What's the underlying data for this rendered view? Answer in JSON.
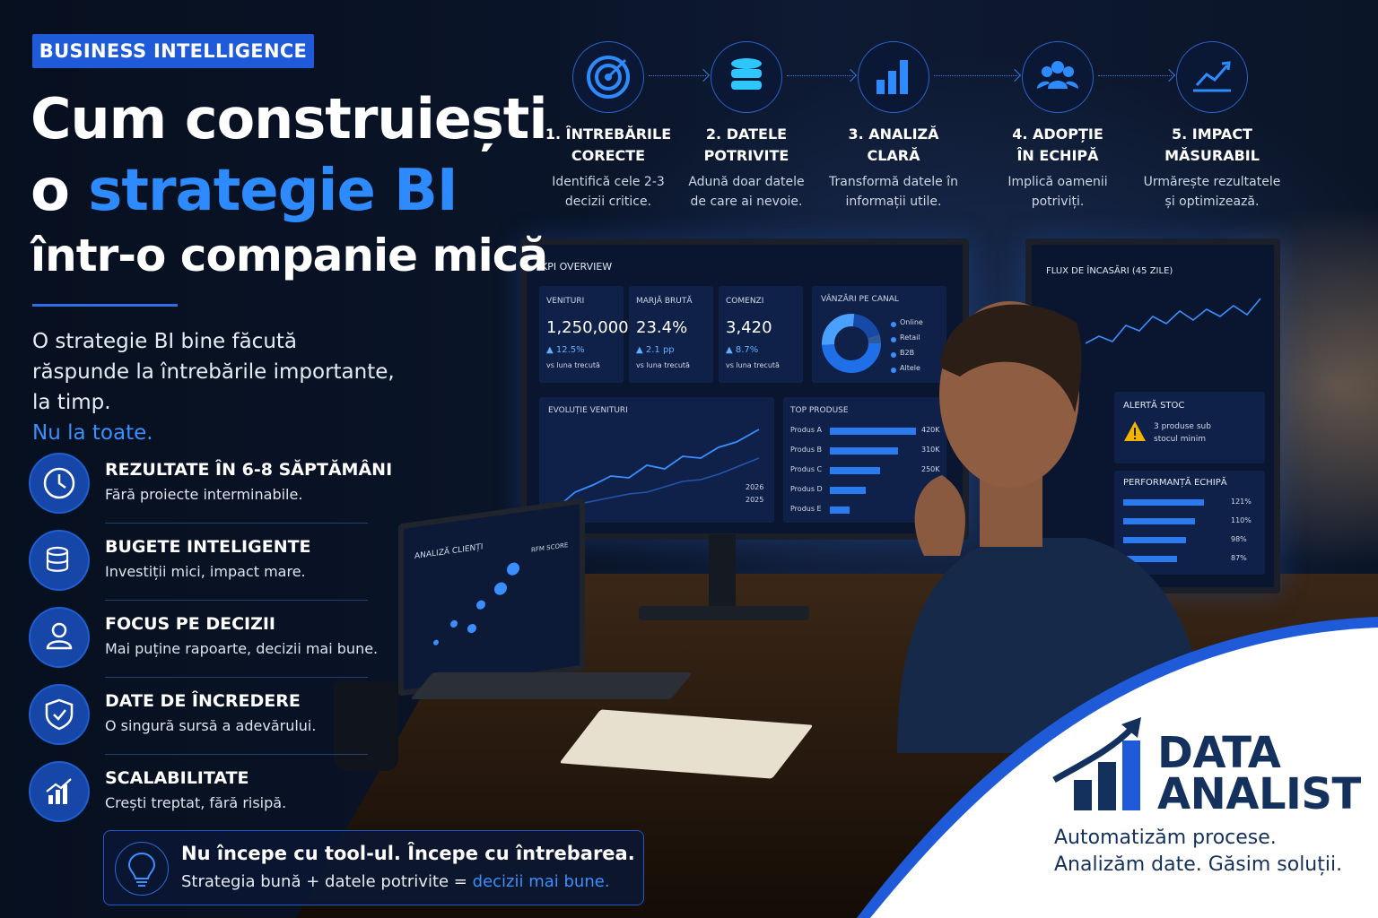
{
  "header": {
    "badge": "BUSINESS INTELLIGENCE",
    "title_line1": "Cum construiești",
    "title_line2_start": "o",
    "title_line2_highlight": "strategie BI",
    "title_line3": "într-o companie mică",
    "intro": "O strategie BI bine făcută răspunde la întrebările importante, la timp.",
    "intro_highlight": "Nu la toate."
  },
  "benefits": [
    {
      "title": "REZULTATE ÎN 6-8 SĂPTĂMÂNI",
      "text": "Fără proiecte interminabile."
    },
    {
      "title": "BUGETE INTELIGENTE",
      "text": "Investiții mici, impact mare."
    },
    {
      "title": "FOCUS PE DECIZII",
      "text": "Mai puține rapoarte, decizii mai bune."
    },
    {
      "title": "DATE DE ÎNCREDERE",
      "text": "O singură sursă a adevărului."
    },
    {
      "title": "SCALABILITATE",
      "text": "Crești treptat, fără risipă."
    }
  ],
  "callout": {
    "title": "Nu începe cu tool-ul. Începe cu întrebarea.",
    "text": "Strategia bună + datele potrivite =",
    "highlight": "decizii mai bune."
  },
  "steps": [
    {
      "title": [
        "1. ÎNTREBĂRILE",
        "CORECTE"
      ],
      "text": [
        "Identifică cele 2-3",
        "decizii critice."
      ]
    },
    {
      "title": [
        "2. DATELE",
        "POTRIVITE"
      ],
      "text": [
        "Adună doar datele",
        "de care ai nevoie."
      ]
    },
    {
      "title": [
        "3. ANALIZĂ",
        "CLARĂ"
      ],
      "text": [
        "Transformă datele în",
        "informații utile."
      ]
    },
    {
      "title": [
        "4. ADOPȚIE",
        "ÎN ECHIPĂ"
      ],
      "text": [
        "Implică oamenii",
        "potriviți."
      ]
    },
    {
      "title": [
        "5. IMPACT",
        "MĂSURABIL"
      ],
      "text": [
        "Urmărește rezultatele",
        "și optimizează."
      ]
    }
  ],
  "dashboard": {
    "title": "KPI OVERVIEW",
    "kpis": [
      {
        "label": "VENITURI",
        "value": "1,250,000",
        "change": "▲ 12.5%",
        "note": "vs luna trecută"
      },
      {
        "label": "MARJĂ BRUTĂ",
        "value": "23.4%",
        "change": "▲ 2.1 pp",
        "note": "vs luna trecută"
      },
      {
        "label": "COMENZI",
        "value": "3,420",
        "change": "▲ 8.7%",
        "note": "vs luna trecută"
      }
    ],
    "channel_title": "VÂNZĂRI PE CANAL",
    "channels": [
      "Online",
      "Retail",
      "B2B",
      "Altele"
    ],
    "revenue_title": "EVOLUȚIE VENITURI",
    "revenue_legend": [
      "2026",
      "2025"
    ],
    "products_title": "TOP PRODUSE",
    "products": [
      {
        "name": "Produs A",
        "value": "420K"
      },
      {
        "name": "Produs B",
        "value": "310K"
      },
      {
        "name": "Produs C",
        "value": "250K"
      },
      {
        "name": "Produs D"
      },
      {
        "name": "Produs E"
      }
    ]
  },
  "side_monitor": {
    "cashflow_title": "FLUX DE ÎNCASĂRI (45 ZILE)",
    "alert_title": "ALERTĂ STOC",
    "alert_text": [
      "3 produse sub",
      "stocul minim"
    ],
    "team_title": "PERFORMANȚĂ ECHIPĂ",
    "team_values": [
      "121%",
      "110%",
      "98%",
      "87%"
    ]
  },
  "laptop": {
    "title": "ANALIZĂ CLIENȚI",
    "rfm_title": "RFM SCORE"
  },
  "brand": {
    "name_line1": "DATA",
    "name_line2": "ANALIST",
    "tagline_line1": "Automatizăm procese.",
    "tagline_line2": "Analizăm date. Găsim soluții."
  }
}
